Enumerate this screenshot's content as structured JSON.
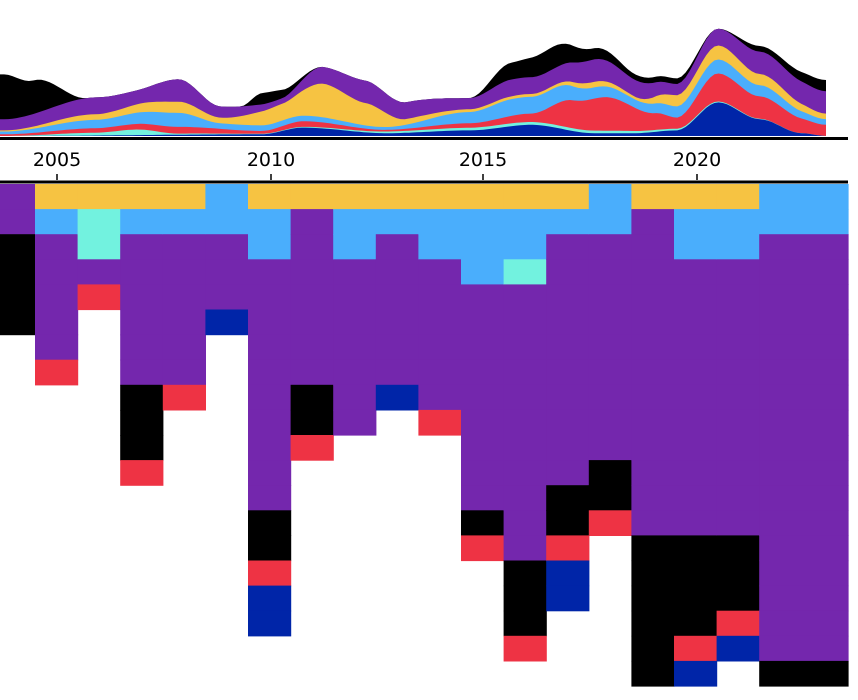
{
  "colors": {
    "black": "#000000",
    "purple": "#7427ad",
    "yellow": "#f6c342",
    "lightblue": "#4aaefc",
    "cyan": "#72f2df",
    "red": "#ee3344",
    "navy": "#0025a8",
    "background": "#ffffff"
  },
  "chart_data": [
    {
      "type": "area",
      "style": "streamgraph",
      "x_range": [
        2003.7,
        2023.6
      ],
      "series": [
        {
          "color_key": "navy",
          "values": [
            [
              2003.8,
              0
            ],
            [
              2010,
              0.3
            ],
            [
              2011,
              1.5
            ],
            [
              2013,
              0.5
            ],
            [
              2015,
              1
            ],
            [
              2016.5,
              2
            ],
            [
              2018,
              0.5
            ],
            [
              2019,
              0.5
            ],
            [
              2020,
              1
            ],
            [
              2021,
              6
            ],
            [
              2022,
              3
            ],
            [
              2023,
              0.5
            ],
            [
              2023.6,
              0
            ]
          ]
        },
        {
          "color_key": "cyan",
          "values": [
            [
              2003.8,
              0
            ],
            [
              2006,
              0.5
            ],
            [
              2007,
              1
            ],
            [
              2008,
              0.2
            ],
            [
              2010,
              0.1
            ],
            [
              2016,
              0.5
            ],
            [
              2017,
              0.5
            ],
            [
              2023.6,
              0
            ]
          ]
        },
        {
          "color_key": "red",
          "values": [
            [
              2003.8,
              0.3
            ],
            [
              2006,
              0.8
            ],
            [
              2008,
              1.2
            ],
            [
              2010,
              0.5
            ],
            [
              2011,
              1
            ],
            [
              2013,
              0.3
            ],
            [
              2015,
              0.8
            ],
            [
              2016.5,
              1.5
            ],
            [
              2017.5,
              5
            ],
            [
              2018.3,
              6
            ],
            [
              2019.5,
              3
            ],
            [
              2020,
              2
            ],
            [
              2021,
              5
            ],
            [
              2022,
              4
            ],
            [
              2023.6,
              2
            ]
          ]
        },
        {
          "color_key": "lightblue",
          "values": [
            [
              2003.8,
              0.5
            ],
            [
              2006,
              1.5
            ],
            [
              2008,
              2.5
            ],
            [
              2009,
              1
            ],
            [
              2011,
              1
            ],
            [
              2013,
              0.5
            ],
            [
              2015,
              2
            ],
            [
              2016,
              3
            ],
            [
              2017,
              3
            ],
            [
              2018,
              2
            ],
            [
              2019,
              1.5
            ],
            [
              2020,
              2
            ],
            [
              2021,
              2.5
            ],
            [
              2022,
              2
            ],
            [
              2023.6,
              1
            ]
          ]
        },
        {
          "color_key": "yellow",
          "values": [
            [
              2003.8,
              0.2
            ],
            [
              2006,
              1
            ],
            [
              2008,
              2
            ],
            [
              2009,
              1
            ],
            [
              2010.5,
              3
            ],
            [
              2011.5,
              6
            ],
            [
              2012.5,
              4
            ],
            [
              2013.5,
              1
            ],
            [
              2015,
              0.5
            ],
            [
              2016,
              0.5
            ],
            [
              2017,
              0.5
            ],
            [
              2018,
              1
            ],
            [
              2019,
              0.5
            ],
            [
              2020,
              2
            ],
            [
              2021,
              2.5
            ],
            [
              2022,
              2
            ],
            [
              2023.6,
              1
            ]
          ]
        },
        {
          "color_key": "purple",
          "values": [
            [
              2003.8,
              2
            ],
            [
              2006,
              3
            ],
            [
              2007,
              2.5
            ],
            [
              2008,
              4
            ],
            [
              2009,
              2
            ],
            [
              2010.5,
              1
            ],
            [
              2011.5,
              3
            ],
            [
              2012.5,
              4
            ],
            [
              2013.5,
              3
            ],
            [
              2015,
              2
            ],
            [
              2016,
              3
            ],
            [
              2017,
              3
            ],
            [
              2018,
              4
            ],
            [
              2019,
              3
            ],
            [
              2020,
              2
            ],
            [
              2021,
              3
            ],
            [
              2022,
              4
            ],
            [
              2023.6,
              4
            ]
          ]
        },
        {
          "color_key": "black",
          "values": [
            [
              2003.8,
              8
            ],
            [
              2004.5,
              6
            ],
            [
              2005.8,
              0
            ],
            [
              2007.5,
              0
            ],
            [
              2008.5,
              0
            ],
            [
              2009.5,
              0
            ],
            [
              2010,
              2
            ],
            [
              2011.5,
              0
            ],
            [
              2013,
              0
            ],
            [
              2015,
              0
            ],
            [
              2016,
              3
            ],
            [
              2017,
              4
            ],
            [
              2018,
              2
            ],
            [
              2019,
              1
            ],
            [
              2020,
              1
            ],
            [
              2021,
              0
            ],
            [
              2022,
              1
            ],
            [
              2023.6,
              2
            ]
          ]
        }
      ]
    },
    {
      "type": "heatmap",
      "style": "waffle columns",
      "x_ticks": [
        "2005",
        "2010",
        "2015",
        "2020"
      ],
      "x_tick_years": [
        2005,
        2010,
        2015,
        2020
      ],
      "columns": [
        {
          "year": 2004,
          "cells": [
            "purple",
            "purple",
            "black",
            "black",
            "black",
            "black"
          ]
        },
        {
          "year": 2005,
          "cells": [
            "yellow",
            "lightblue",
            "purple",
            "purple",
            "purple",
            "purple",
            "purple",
            "red"
          ]
        },
        {
          "year": 2006,
          "cells": [
            "yellow",
            "cyan",
            "cyan",
            "purple",
            "red"
          ]
        },
        {
          "year": 2007,
          "cells": [
            "yellow",
            "lightblue",
            "purple",
            "purple",
            "purple",
            "purple",
            "purple",
            "purple",
            "black",
            "black",
            "black",
            "red"
          ]
        },
        {
          "year": 2008,
          "cells": [
            "yellow",
            "lightblue",
            "purple",
            "purple",
            "purple",
            "purple",
            "purple",
            "purple",
            "red"
          ]
        },
        {
          "year": 2009,
          "cells": [
            "lightblue",
            "lightblue",
            "purple",
            "purple",
            "purple",
            "navy"
          ]
        },
        {
          "year": 2010,
          "cells": [
            "yellow",
            "lightblue",
            "lightblue",
            "purple",
            "purple",
            "purple",
            "purple",
            "purple",
            "purple",
            "purple",
            "purple",
            "purple",
            "purple",
            "black",
            "black",
            "red",
            "navy",
            "navy"
          ]
        },
        {
          "year": 2011,
          "cells": [
            "yellow",
            "purple",
            "purple",
            "purple",
            "purple",
            "purple",
            "purple",
            "purple",
            "black",
            "black",
            "red"
          ]
        },
        {
          "year": 2012,
          "cells": [
            "yellow",
            "lightblue",
            "lightblue",
            "purple",
            "purple",
            "purple",
            "purple",
            "purple",
            "purple",
            "purple"
          ]
        },
        {
          "year": 2013,
          "cells": [
            "yellow",
            "lightblue",
            "purple",
            "purple",
            "purple",
            "purple",
            "purple",
            "purple",
            "navy"
          ]
        },
        {
          "year": 2014,
          "cells": [
            "yellow",
            "lightblue",
            "lightblue",
            "purple",
            "purple",
            "purple",
            "purple",
            "purple",
            "purple",
            "red"
          ]
        },
        {
          "year": 2015,
          "cells": [
            "yellow",
            "lightblue",
            "lightblue",
            "lightblue",
            "purple",
            "purple",
            "purple",
            "purple",
            "purple",
            "purple",
            "purple",
            "purple",
            "purple",
            "black",
            "red"
          ]
        },
        {
          "year": 2016,
          "cells": [
            "yellow",
            "lightblue",
            "lightblue",
            "cyan",
            "purple",
            "purple",
            "purple",
            "purple",
            "purple",
            "purple",
            "purple",
            "purple",
            "purple",
            "purple",
            "purple",
            "black",
            "black",
            "black",
            "red"
          ]
        },
        {
          "year": 2017,
          "cells": [
            "yellow",
            "lightblue",
            "purple",
            "purple",
            "purple",
            "purple",
            "purple",
            "purple",
            "purple",
            "purple",
            "purple",
            "purple",
            "black",
            "black",
            "red",
            "navy",
            "navy"
          ]
        },
        {
          "year": 2018,
          "cells": [
            "lightblue",
            "lightblue",
            "purple",
            "purple",
            "purple",
            "purple",
            "purple",
            "purple",
            "purple",
            "purple",
            "purple",
            "black",
            "black",
            "red"
          ]
        },
        {
          "year": 2019,
          "cells": [
            "yellow",
            "purple",
            "purple",
            "purple",
            "purple",
            "purple",
            "purple",
            "purple",
            "purple",
            "purple",
            "purple",
            "purple",
            "purple",
            "purple",
            "black",
            "black",
            "black",
            "black",
            "black",
            "black"
          ]
        },
        {
          "year": 2020,
          "cells": [
            "yellow",
            "lightblue",
            "lightblue",
            "purple",
            "purple",
            "purple",
            "purple",
            "purple",
            "purple",
            "purple",
            "purple",
            "purple",
            "purple",
            "purple",
            "black",
            "black",
            "black",
            "black",
            "red",
            "navy"
          ]
        },
        {
          "year": 2021,
          "cells": [
            "yellow",
            "lightblue",
            "lightblue",
            "purple",
            "purple",
            "purple",
            "purple",
            "purple",
            "purple",
            "purple",
            "purple",
            "purple",
            "purple",
            "purple",
            "black",
            "black",
            "black",
            "red",
            "navy"
          ]
        },
        {
          "year": 2022,
          "cells": [
            "lightblue",
            "lightblue",
            "purple",
            "purple",
            "purple",
            "purple",
            "purple",
            "purple",
            "purple",
            "purple",
            "purple",
            "purple",
            "purple",
            "purple",
            "purple",
            "purple",
            "purple",
            "purple",
            "purple",
            "black"
          ]
        }
      ]
    }
  ]
}
